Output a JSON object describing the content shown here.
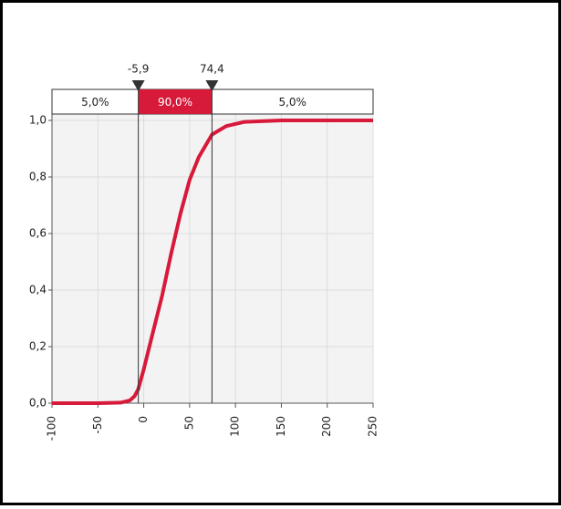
{
  "chart_data": {
    "type": "line",
    "x": [
      -100,
      -50,
      -25,
      -15,
      -10,
      -5.9,
      0,
      10,
      20,
      30,
      40,
      50,
      60,
      74.4,
      90,
      110,
      150,
      250
    ],
    "series": [
      {
        "color": "#d7193a",
        "values": [
          0,
          0,
          0.002,
          0.01,
          0.025,
          0.05,
          0.12,
          0.25,
          0.38,
          0.53,
          0.67,
          0.79,
          0.87,
          0.95,
          0.98,
          0.995,
          1,
          1
        ]
      }
    ],
    "xlim": [
      -100,
      250
    ],
    "ylim": [
      0,
      1
    ],
    "xticks": [
      -100,
      -50,
      0,
      50,
      100,
      150,
      200,
      250
    ],
    "yticks": [
      {
        "value": 0,
        "label": "0,0"
      },
      {
        "value": 0.2,
        "label": "0,2"
      },
      {
        "value": 0.4,
        "label": "0,4"
      },
      {
        "value": 0.6,
        "label": "0,6"
      },
      {
        "value": 0.8,
        "label": "0,8"
      },
      {
        "value": 1,
        "label": "1,0"
      }
    ],
    "grid": true,
    "delimiters": [
      {
        "value": -5.9,
        "label": "-5,9"
      },
      {
        "value": 74.4,
        "label": "74,4"
      }
    ],
    "probability_bands": [
      "5,0%",
      "90,0%",
      "5,0%"
    ],
    "band_highlight_color": "#d7193a"
  }
}
